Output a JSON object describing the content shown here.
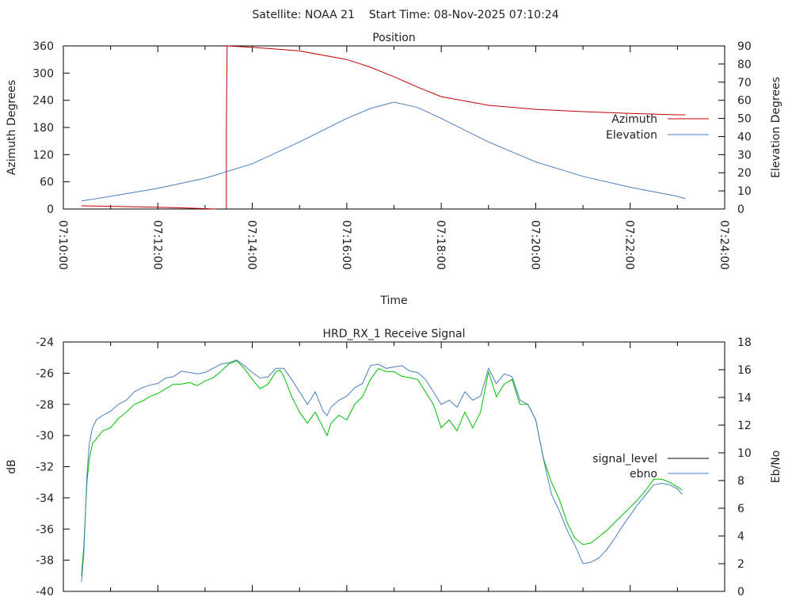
{
  "header": {
    "title": "Satellite: NOAA 21    Start Time: 08-Nov-2025 07:10:24"
  },
  "colors": {
    "azimuth": "#c00000",
    "elevation": "#4a7fc0",
    "signal_level_line": "#00c000",
    "signal_level_key": "#000000",
    "ebno": "#4a7fc0",
    "axis": "#000000"
  },
  "chart_data": [
    {
      "type": "line",
      "title": "Position",
      "xlabel": "Time",
      "ylabel": "Azimuth Degrees",
      "y2label": "Elevation Degrees",
      "x_unit": "seconds after 07:10:00",
      "xlim": [
        0,
        840
      ],
      "ylim": [
        0,
        360
      ],
      "y2lim": [
        0,
        90
      ],
      "xticks": [
        "07:10:00",
        "07:12:00",
        "07:14:00",
        "07:16:00",
        "07:18:00",
        "07:20:00",
        "07:22:00",
        "07:24:00"
      ],
      "yticks": [
        "0",
        "60",
        "120",
        "180",
        "240",
        "300",
        "360"
      ],
      "y2ticks": [
        "0",
        "10",
        "20",
        "30",
        "40",
        "50",
        "60",
        "70",
        "80",
        "90"
      ],
      "legend_position": "right",
      "series": [
        {
          "name": "Azimuth",
          "axis": "y",
          "segments": [
            [
              [
                23,
                7
              ],
              [
                60,
                6
              ],
              [
                120,
                4
              ],
              [
                160,
                2
              ],
              [
                193,
                0
              ]
            ],
            [
              [
                207,
                0
              ],
              [
                207,
                180
              ],
              [
                208,
                360
              ],
              [
                240,
                357
              ],
              [
                300,
                349
              ],
              [
                360,
                330
              ],
              [
                390,
                313
              ],
              [
                420,
                292
              ],
              [
                450,
                269
              ],
              [
                480,
                248
              ],
              [
                540,
                229
              ],
              [
                600,
                220
              ],
              [
                660,
                215
              ],
              [
                720,
                211
              ],
              [
                780,
                208
              ],
              [
                790,
                208
              ]
            ]
          ]
        },
        {
          "name": "Elevation",
          "axis": "y2",
          "segments": [
            [
              [
                23,
                4.4
              ],
              [
                60,
                7
              ],
              [
                120,
                11.4
              ],
              [
                180,
                17
              ],
              [
                240,
                25
              ],
              [
                300,
                37
              ],
              [
                360,
                50
              ],
              [
                390,
                55.5
              ],
              [
                420,
                59
              ],
              [
                450,
                56
              ],
              [
                480,
                50
              ],
              [
                540,
                37
              ],
              [
                600,
                26
              ],
              [
                660,
                18
              ],
              [
                720,
                12
              ],
              [
                780,
                7
              ],
              [
                790,
                5.7
              ]
            ]
          ]
        }
      ]
    },
    {
      "type": "line",
      "title": "HRD_RX_1 Receive Signal",
      "ylabel": "dB",
      "y2label": "Eb/No",
      "x_unit": "seconds after 07:10:00",
      "xlim": [
        0,
        840
      ],
      "ylim": [
        -40,
        -24
      ],
      "y2lim": [
        0,
        18
      ],
      "yticks": [
        "-40",
        "-38",
        "-36",
        "-34",
        "-32",
        "-30",
        "-28",
        "-26",
        "-24"
      ],
      "y2ticks": [
        "0",
        "2",
        "4",
        "6",
        "8",
        "10",
        "12",
        "14",
        "16",
        "18"
      ],
      "legend_position": "right",
      "series": [
        {
          "name": "signal_level",
          "axis": "y",
          "points": [
            [
              23,
              -39.0
            ],
            [
              26,
              -37.1
            ],
            [
              30,
              -33.0
            ],
            [
              33,
              -31.5
            ],
            [
              37,
              -30.5
            ],
            [
              42,
              -30.2
            ],
            [
              50,
              -29.7
            ],
            [
              60,
              -29.5
            ],
            [
              70,
              -28.9
            ],
            [
              80,
              -28.5
            ],
            [
              90,
              -28.0
            ],
            [
              100,
              -27.8
            ],
            [
              110,
              -27.5
            ],
            [
              120,
              -27.3
            ],
            [
              130,
              -27.0
            ],
            [
              140,
              -26.7
            ],
            [
              150,
              -26.7
            ],
            [
              160,
              -26.6
            ],
            [
              170,
              -26.8
            ],
            [
              180,
              -26.5
            ],
            [
              190,
              -26.3
            ],
            [
              200,
              -25.9
            ],
            [
              210,
              -25.4
            ],
            [
              220,
              -25.2
            ],
            [
              230,
              -25.7
            ],
            [
              240,
              -26.4
            ],
            [
              250,
              -27.0
            ],
            [
              260,
              -26.7
            ],
            [
              270,
              -25.9
            ],
            [
              275,
              -25.8
            ],
            [
              280,
              -26.2
            ],
            [
              290,
              -27.5
            ],
            [
              300,
              -28.5
            ],
            [
              310,
              -29.2
            ],
            [
              320,
              -28.5
            ],
            [
              330,
              -29.5
            ],
            [
              335,
              -30.0
            ],
            [
              340,
              -29.2
            ],
            [
              350,
              -28.7
            ],
            [
              360,
              -29.0
            ],
            [
              370,
              -28.0
            ],
            [
              380,
              -27.5
            ],
            [
              390,
              -26.4
            ],
            [
              400,
              -25.7
            ],
            [
              410,
              -25.9
            ],
            [
              420,
              -25.9
            ],
            [
              430,
              -26.2
            ],
            [
              440,
              -26.3
            ],
            [
              450,
              -26.4
            ],
            [
              460,
              -27.2
            ],
            [
              470,
              -28.0
            ],
            [
              480,
              -29.5
            ],
            [
              490,
              -29.0
            ],
            [
              500,
              -29.7
            ],
            [
              510,
              -28.5
            ],
            [
              520,
              -29.5
            ],
            [
              530,
              -28.5
            ],
            [
              540,
              -25.9
            ],
            [
              550,
              -27.5
            ],
            [
              560,
              -26.7
            ],
            [
              570,
              -26.4
            ],
            [
              580,
              -28.0
            ],
            [
              590,
              -28.0
            ],
            [
              600,
              -29.0
            ],
            [
              610,
              -31.5
            ],
            [
              620,
              -33.0
            ],
            [
              630,
              -34.1
            ],
            [
              640,
              -35.6
            ],
            [
              650,
              -36.6
            ],
            [
              660,
              -37.0
            ],
            [
              670,
              -36.9
            ],
            [
              680,
              -36.5
            ],
            [
              690,
              -36.1
            ],
            [
              700,
              -35.6
            ],
            [
              710,
              -35.1
            ],
            [
              720,
              -34.6
            ],
            [
              730,
              -34.1
            ],
            [
              740,
              -33.5
            ],
            [
              750,
              -32.8
            ],
            [
              760,
              -32.8
            ],
            [
              770,
              -33.0
            ],
            [
              780,
              -33.3
            ],
            [
              786,
              -33.5
            ]
          ]
        },
        {
          "name": "ebno",
          "axis": "y2",
          "points": [
            [
              23,
              0.7
            ],
            [
              26,
              2.7
            ],
            [
              30,
              8.4
            ],
            [
              33,
              10.7
            ],
            [
              37,
              11.8
            ],
            [
              42,
              12.4
            ],
            [
              50,
              12.7
            ],
            [
              60,
              13.0
            ],
            [
              70,
              13.5
            ],
            [
              80,
              13.8
            ],
            [
              90,
              14.4
            ],
            [
              100,
              14.7
            ],
            [
              110,
              14.9
            ],
            [
              120,
              15.0
            ],
            [
              130,
              15.4
            ],
            [
              140,
              15.5
            ],
            [
              150,
              15.9
            ],
            [
              160,
              15.8
            ],
            [
              170,
              15.7
            ],
            [
              180,
              15.8
            ],
            [
              190,
              16.1
            ],
            [
              200,
              16.4
            ],
            [
              210,
              16.5
            ],
            [
              220,
              16.7
            ],
            [
              230,
              16.3
            ],
            [
              240,
              15.8
            ],
            [
              250,
              15.4
            ],
            [
              260,
              15.5
            ],
            [
              270,
              16.1
            ],
            [
              280,
              16.1
            ],
            [
              290,
              15.3
            ],
            [
              300,
              14.4
            ],
            [
              310,
              13.5
            ],
            [
              320,
              14.4
            ],
            [
              330,
              13.0
            ],
            [
              335,
              12.7
            ],
            [
              340,
              13.3
            ],
            [
              350,
              13.8
            ],
            [
              360,
              14.1
            ],
            [
              370,
              14.7
            ],
            [
              380,
              15.0
            ],
            [
              390,
              16.3
            ],
            [
              400,
              16.4
            ],
            [
              410,
              16.1
            ],
            [
              420,
              16.2
            ],
            [
              430,
              16.3
            ],
            [
              440,
              15.9
            ],
            [
              450,
              15.8
            ],
            [
              460,
              15.3
            ],
            [
              470,
              14.4
            ],
            [
              480,
              13.5
            ],
            [
              490,
              13.8
            ],
            [
              500,
              13.3
            ],
            [
              510,
              14.4
            ],
            [
              520,
              13.8
            ],
            [
              530,
              14.1
            ],
            [
              540,
              16.1
            ],
            [
              550,
              15.0
            ],
            [
              560,
              15.7
            ],
            [
              570,
              15.5
            ],
            [
              580,
              13.8
            ],
            [
              590,
              13.5
            ],
            [
              600,
              12.4
            ],
            [
              610,
              9.5
            ],
            [
              620,
              7.0
            ],
            [
              630,
              5.8
            ],
            [
              640,
              4.4
            ],
            [
              650,
              3.3
            ],
            [
              660,
              2.0
            ],
            [
              670,
              2.1
            ],
            [
              680,
              2.4
            ],
            [
              690,
              3.0
            ],
            [
              700,
              3.8
            ],
            [
              710,
              4.7
            ],
            [
              720,
              5.5
            ],
            [
              730,
              6.3
            ],
            [
              740,
              7.0
            ],
            [
              750,
              7.7
            ],
            [
              760,
              7.8
            ],
            [
              770,
              7.7
            ],
            [
              780,
              7.4
            ],
            [
              786,
              7.0
            ]
          ]
        }
      ]
    }
  ]
}
